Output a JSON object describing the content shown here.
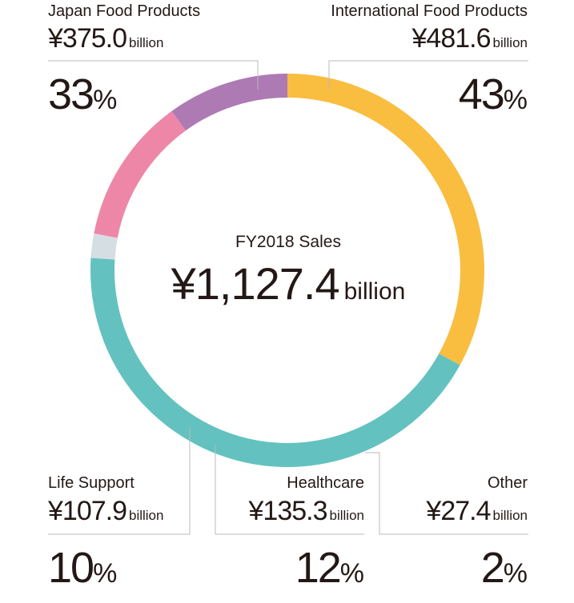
{
  "chart_data": {
    "type": "pie",
    "center": {
      "label": "FY2018 Sales",
      "value": "¥1,127.4",
      "unit": "billion"
    },
    "series": [
      {
        "name": "Japan Food Products",
        "amount": "¥375.0",
        "unit": "billion",
        "value": 33,
        "percent_label": "33",
        "percent_sign": "%",
        "color": "#F9BD40"
      },
      {
        "name": "International Food Products",
        "amount": "¥481.6",
        "unit": "billion",
        "value": 43,
        "percent_label": "43",
        "percent_sign": "%",
        "color": "#63C2BF"
      },
      {
        "name": "Other",
        "amount": "¥27.4",
        "unit": "billion",
        "value": 2,
        "percent_label": "2",
        "percent_sign": "%",
        "color": "#D5DEE3"
      },
      {
        "name": "Healthcare",
        "amount": "¥135.3",
        "unit": "billion",
        "value": 12,
        "percent_label": "12",
        "percent_sign": "%",
        "color": "#EE87A7"
      },
      {
        "name": "Life Support",
        "amount": "¥107.9",
        "unit": "billion",
        "value": 10,
        "percent_label": "10",
        "percent_sign": "%",
        "color": "#AD7AB4"
      }
    ],
    "divider_color": "#BBBBBB"
  }
}
